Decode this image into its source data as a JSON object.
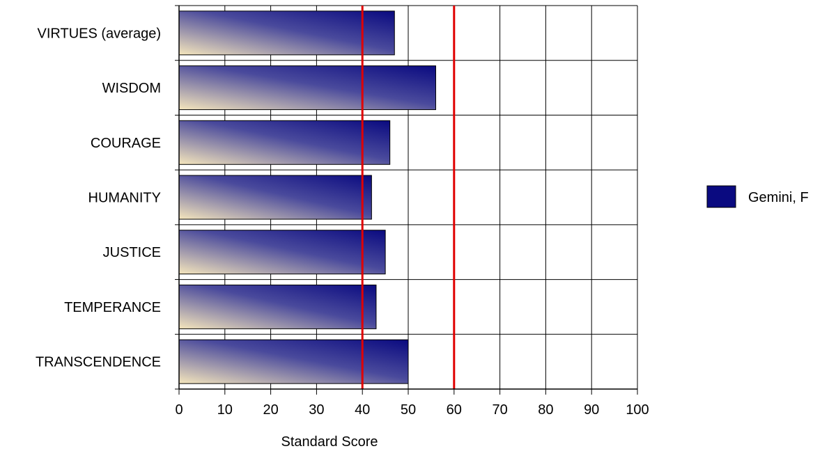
{
  "chart_data": {
    "type": "bar",
    "orientation": "horizontal",
    "categories": [
      "VIRTUES (average)",
      "WISDOM",
      "COURAGE",
      "HUMANITY",
      "JUSTICE",
      "TEMPERANCE",
      "TRANSCENDENCE"
    ],
    "series": [
      {
        "name": "Gemini, F",
        "values": [
          47,
          56,
          46,
          42,
          45,
          43,
          50
        ]
      }
    ],
    "xlabel": "Standard Score",
    "ylabel": "",
    "xlim": [
      0,
      100
    ],
    "xticks": [
      0,
      10,
      20,
      30,
      40,
      50,
      60,
      70,
      80,
      90,
      100
    ],
    "reference_lines": [
      40,
      60
    ],
    "reference_line_color": "#e00000",
    "bar_gradient": {
      "dark": "#0a0a80",
      "light": "#f5e6bc"
    },
    "grid": true,
    "legend_position": "right"
  }
}
